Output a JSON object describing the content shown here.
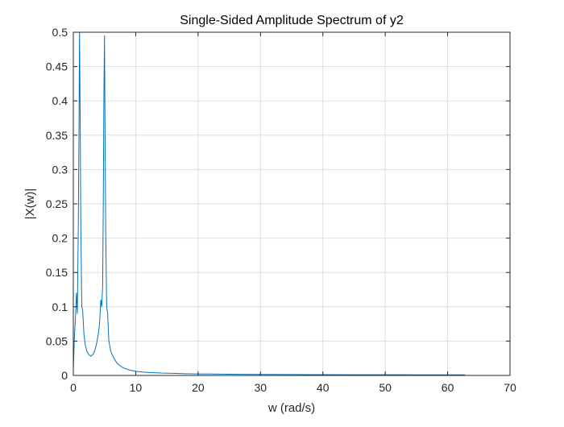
{
  "chart_data": {
    "type": "line",
    "title": "Single-Sided Amplitude Spectrum of y2",
    "xlabel": "w (rad/s)",
    "ylabel": "|X(w)|",
    "xlim": [
      0,
      70
    ],
    "ylim": [
      0,
      0.5
    ],
    "xticks": [
      0,
      10,
      20,
      30,
      40,
      50,
      60,
      70
    ],
    "yticks": [
      0,
      0.05,
      0.1,
      0.15,
      0.2,
      0.25,
      0.3,
      0.35,
      0.4,
      0.45,
      0.5
    ],
    "xtick_labels": [
      "0",
      "10",
      "20",
      "30",
      "40",
      "50",
      "60",
      "70"
    ],
    "ytick_labels": [
      "0",
      "0.05",
      "0.1",
      "0.15",
      "0.2",
      "0.25",
      "0.3",
      "0.35",
      "0.4",
      "0.45",
      "0.5"
    ],
    "grid": true,
    "line_color": "#0072BD",
    "series": [
      {
        "x": [
          0,
          0.2,
          0.35,
          0.5,
          0.65,
          0.8,
          0.9,
          1.0,
          1.1,
          1.2,
          1.35,
          1.5,
          1.7,
          1.9,
          2.2,
          2.5,
          2.8,
          3.1,
          3.4,
          3.7,
          4.0,
          4.2,
          4.4,
          4.55,
          4.7,
          4.8,
          4.9,
          5.0,
          5.1,
          5.2,
          5.35,
          5.5,
          5.7,
          6.0,
          6.5,
          7.0,
          7.5,
          8.0,
          9.0,
          10.0,
          11.0,
          12.0,
          14.0,
          16.0,
          18.0,
          20.0,
          25.0,
          30.0,
          35.0,
          40.0,
          45.0,
          50.0,
          55.0,
          60.0,
          62.8
        ],
        "y": [
          0.01,
          0.06,
          0.085,
          0.12,
          0.09,
          0.22,
          0.35,
          0.5,
          0.38,
          0.22,
          0.1,
          0.095,
          0.06,
          0.045,
          0.035,
          0.03,
          0.028,
          0.03,
          0.035,
          0.045,
          0.06,
          0.075,
          0.11,
          0.1,
          0.13,
          0.25,
          0.4,
          0.495,
          0.33,
          0.2,
          0.1,
          0.09,
          0.05,
          0.035,
          0.025,
          0.018,
          0.014,
          0.011,
          0.008,
          0.006,
          0.005,
          0.0045,
          0.0035,
          0.003,
          0.0025,
          0.0022,
          0.0018,
          0.0015,
          0.0013,
          0.0012,
          0.0011,
          0.001,
          0.0009,
          0.0009,
          0.0008
        ]
      }
    ]
  }
}
